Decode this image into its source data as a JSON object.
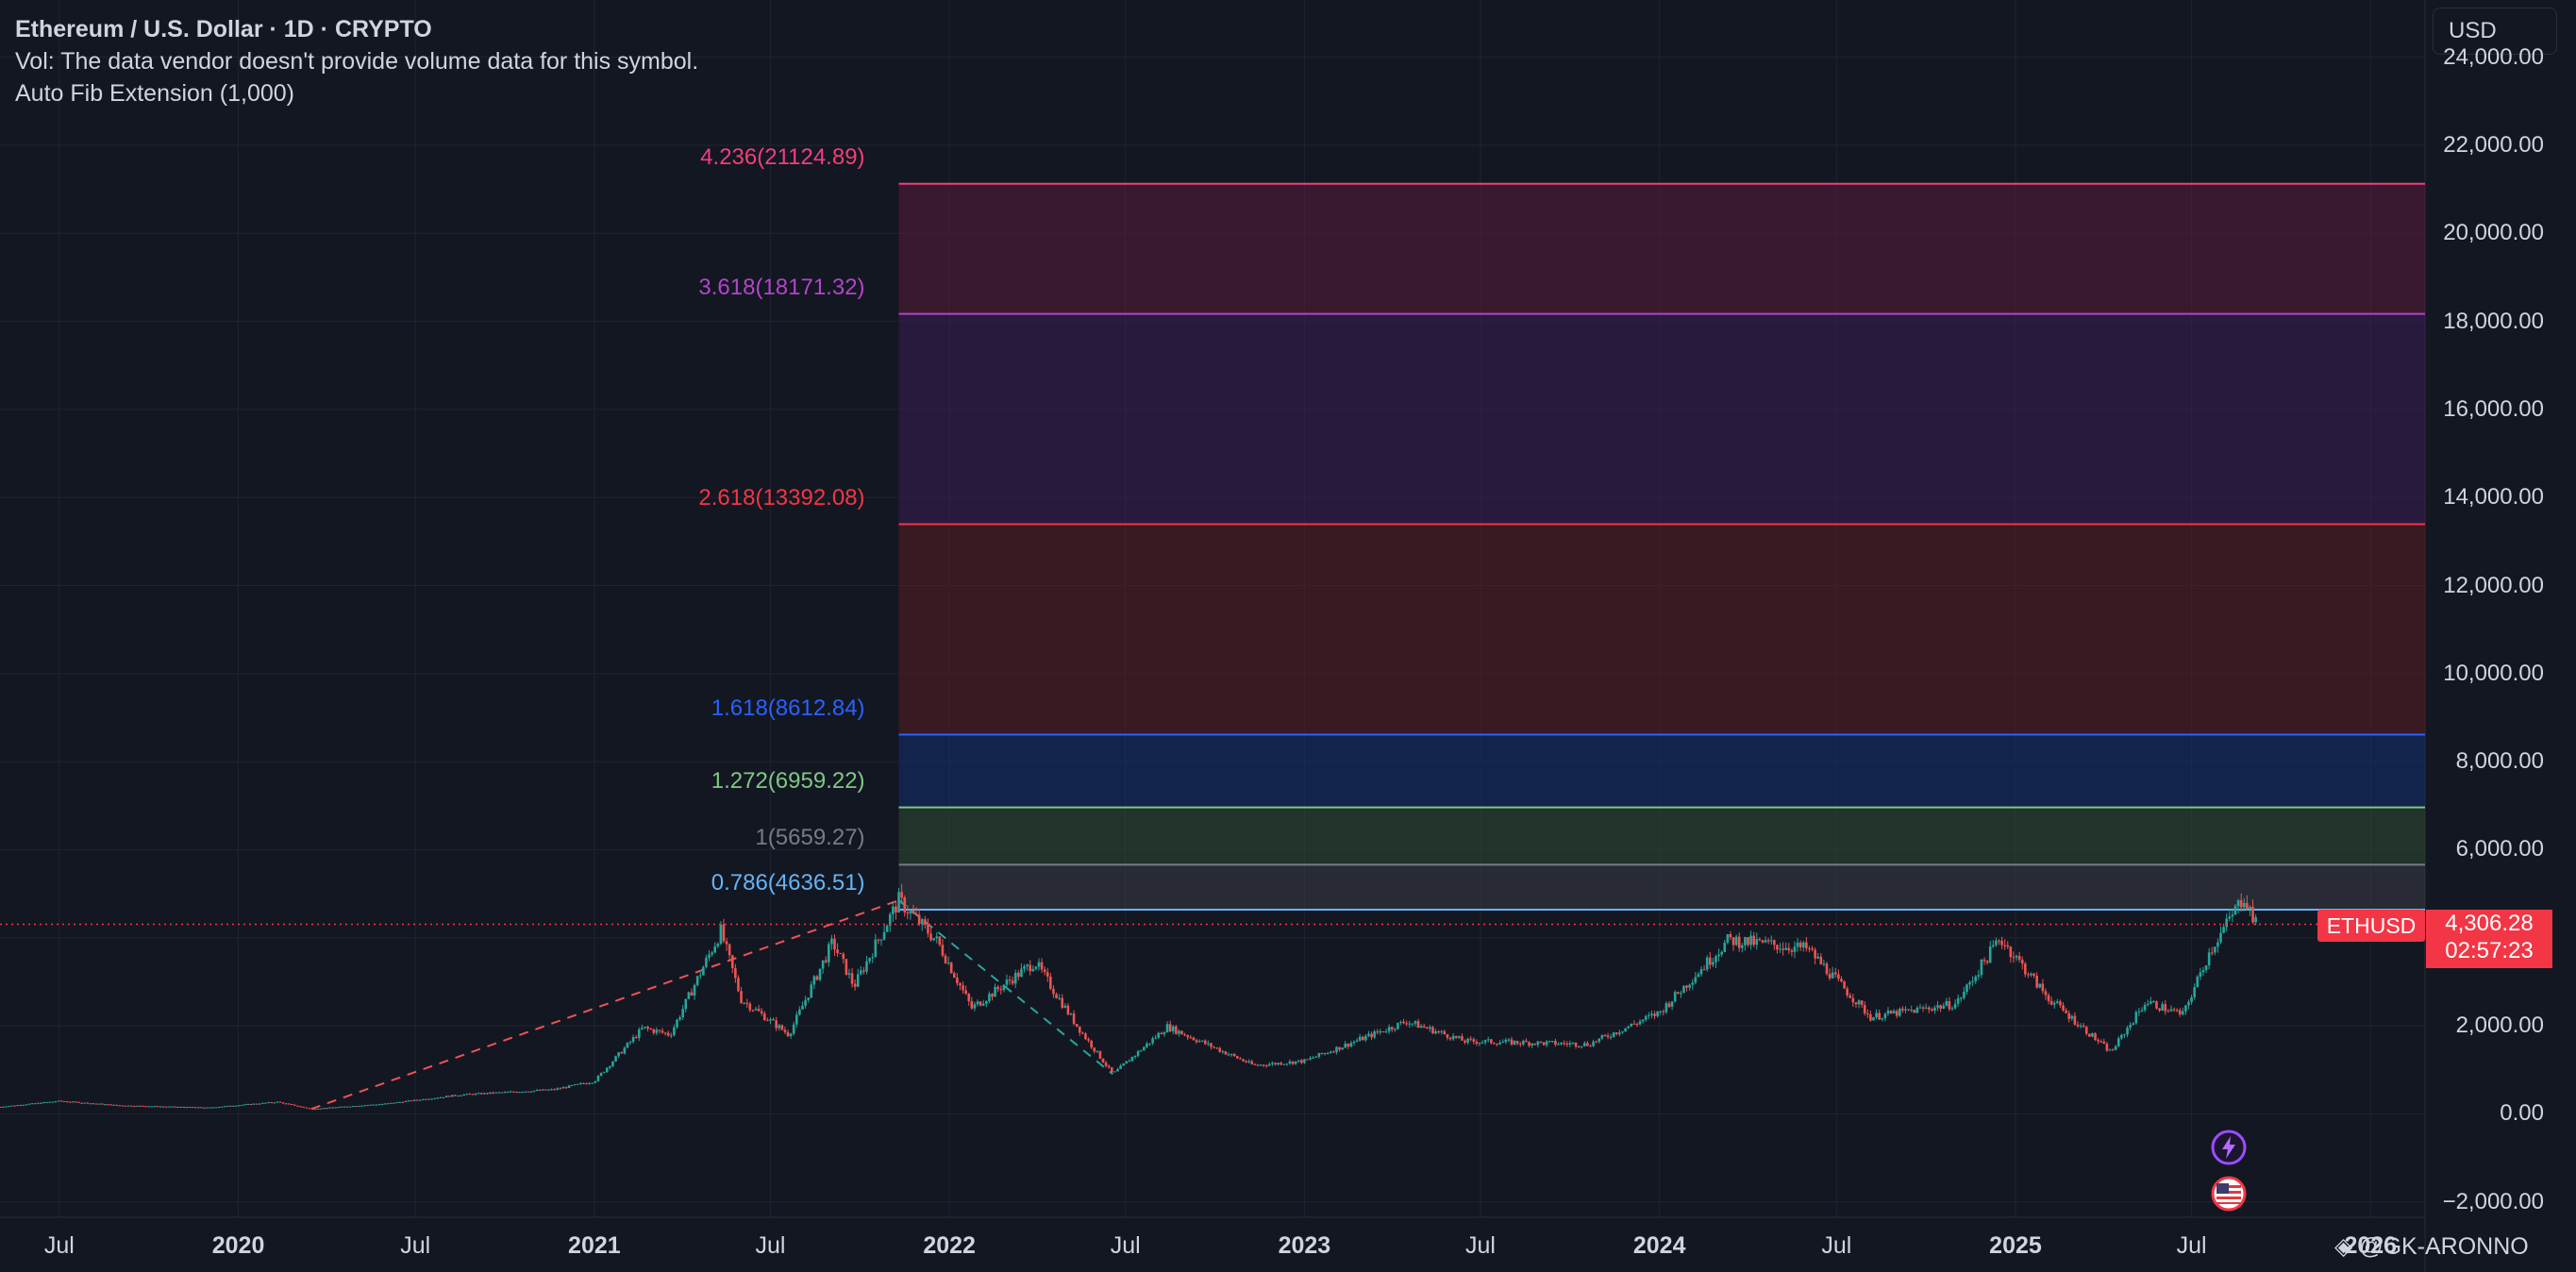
{
  "header": {
    "symbol_title": "Ethereum / U.S. Dollar · 1D · CRYPTO",
    "volume_note": "Vol: The data vendor doesn't provide volume data for this symbol.",
    "indicator": "Auto Fib Extension (1,000)"
  },
  "currency_button": "USD",
  "price_badge": {
    "ticker": "ETHUSD",
    "price": "4,306.28",
    "countdown": "02:57:23"
  },
  "watermark": "@GK-ARONNO",
  "colors": {
    "background": "#131722",
    "grid": "#1f2430",
    "candle_up": "#26a69a",
    "candle_down": "#ef5350",
    "price_line": "#f23645"
  },
  "icons": [
    "lightning-event-icon",
    "us-flag-event-icon",
    "tradingview-logo-icon"
  ],
  "chart_data": {
    "type": "candlestick",
    "title": "Ethereum / U.S. Dollar · 1D · CRYPTO",
    "y_axis": {
      "ticks": [
        "24,000.00",
        "22,000.00",
        "20,000.00",
        "18,000.00",
        "16,000.00",
        "14,000.00",
        "12,000.00",
        "10,000.00",
        "8,000.00",
        "6,000.00",
        "4,000.00",
        "2,000.00",
        "0.00",
        "−2,000.00"
      ],
      "range": [
        -2350,
        25300
      ]
    },
    "x_axis": {
      "ticks": [
        {
          "label": "Jul",
          "date": "2019-07-01",
          "bold": false
        },
        {
          "label": "2020",
          "date": "2020-01-01",
          "bold": true
        },
        {
          "label": "Jul",
          "date": "2020-07-01",
          "bold": false
        },
        {
          "label": "2021",
          "date": "2021-01-01",
          "bold": true
        },
        {
          "label": "Jul",
          "date": "2021-07-01",
          "bold": false
        },
        {
          "label": "2022",
          "date": "2022-01-01",
          "bold": true
        },
        {
          "label": "Jul",
          "date": "2022-07-01",
          "bold": false
        },
        {
          "label": "2023",
          "date": "2023-01-01",
          "bold": true
        },
        {
          "label": "Jul",
          "date": "2023-07-01",
          "bold": false
        },
        {
          "label": "2024",
          "date": "2024-01-01",
          "bold": true
        },
        {
          "label": "Jul",
          "date": "2024-07-01",
          "bold": false
        },
        {
          "label": "2025",
          "date": "2025-01-01",
          "bold": true
        },
        {
          "label": "Jul",
          "date": "2025-07-01",
          "bold": false
        },
        {
          "label": "2026",
          "date": "2026-01-01",
          "bold": true
        }
      ],
      "range": [
        "2019-05-01",
        "2026-02-26"
      ]
    },
    "price_series": [
      [
        "2019-05-01",
        160
      ],
      [
        "2019-07-01",
        290
      ],
      [
        "2019-09-01",
        190
      ],
      [
        "2019-12-01",
        140
      ],
      [
        "2020-02-10",
        270
      ],
      [
        "2020-03-16",
        110
      ],
      [
        "2020-06-01",
        230
      ],
      [
        "2020-08-15",
        430
      ],
      [
        "2020-11-20",
        550
      ],
      [
        "2021-01-01",
        740
      ],
      [
        "2021-02-20",
        1950
      ],
      [
        "2021-03-20",
        1800
      ],
      [
        "2021-05-11",
        4150
      ],
      [
        "2021-06-01",
        2600
      ],
      [
        "2021-07-20",
        1800
      ],
      [
        "2021-09-03",
        3900
      ],
      [
        "2021-09-25",
        2900
      ],
      [
        "2021-11-10",
        4850
      ],
      [
        "2021-12-20",
        3900
      ],
      [
        "2022-01-24",
        2400
      ],
      [
        "2022-03-30",
        3450
      ],
      [
        "2022-05-12",
        2000
      ],
      [
        "2022-06-18",
        900
      ],
      [
        "2022-08-13",
        1980
      ],
      [
        "2022-11-10",
        1100
      ],
      [
        "2023-01-01",
        1200
      ],
      [
        "2023-04-16",
        2100
      ],
      [
        "2023-06-15",
        1650
      ],
      [
        "2023-10-20",
        1580
      ],
      [
        "2024-01-01",
        2300
      ],
      [
        "2024-03-12",
        3950
      ],
      [
        "2024-06-01",
        3750
      ],
      [
        "2024-08-05",
        2200
      ],
      [
        "2024-11-01",
        2500
      ],
      [
        "2024-12-16",
        4000
      ],
      [
        "2025-02-03",
        2650
      ],
      [
        "2025-04-09",
        1400
      ],
      [
        "2025-05-15",
        2550
      ],
      [
        "2025-06-22",
        2250
      ],
      [
        "2025-07-20",
        3700
      ],
      [
        "2025-08-24",
        4950
      ],
      [
        "2025-09-05",
        4306
      ]
    ],
    "last_price": 4306.28,
    "fib_extension": {
      "anchors": [
        {
          "date": "2020-03-16",
          "price": 110
        },
        {
          "date": "2021-11-10",
          "price": 4850
        },
        {
          "date": "2022-06-18",
          "price": 900
        }
      ],
      "start_date": "2021-11-10",
      "levels": [
        {
          "ratio": "4.236",
          "value": 21124.89,
          "label": "4.236(21124.89)",
          "color": "#f23f7a"
        },
        {
          "ratio": "3.618",
          "value": 18171.32,
          "label": "3.618(18171.32)",
          "color": "#b444c9"
        },
        {
          "ratio": "2.618",
          "value": 13392.08,
          "label": "2.618(13392.08)",
          "color": "#f23645"
        },
        {
          "ratio": "1.618",
          "value": 8612.84,
          "label": "1.618(8612.84)",
          "color": "#2962ff"
        },
        {
          "ratio": "1.272",
          "value": 6959.22,
          "label": "1.272(6959.22)",
          "color": "#81c784"
        },
        {
          "ratio": "1",
          "value": 5659.27,
          "label": "1(5659.27)",
          "color": "#787b86"
        },
        {
          "ratio": "0.786",
          "value": 4636.51,
          "label": "0.786(4636.51)",
          "color": "#64b5f6"
        }
      ],
      "bands": [
        {
          "from": "4.236",
          "to": "3.618",
          "color": "#5a1c37"
        },
        {
          "from": "3.618",
          "to": "2.618",
          "color": "#3b1d54"
        },
        {
          "from": "2.618",
          "to": "1.618",
          "color": "#5a1c22"
        },
        {
          "from": "1.618",
          "to": "1.272",
          "color": "#13306e"
        },
        {
          "from": "1.272",
          "to": "1",
          "color": "#2e4a33"
        },
        {
          "from": "1",
          "to": "0.786",
          "color": "#3a3c44"
        }
      ]
    }
  }
}
